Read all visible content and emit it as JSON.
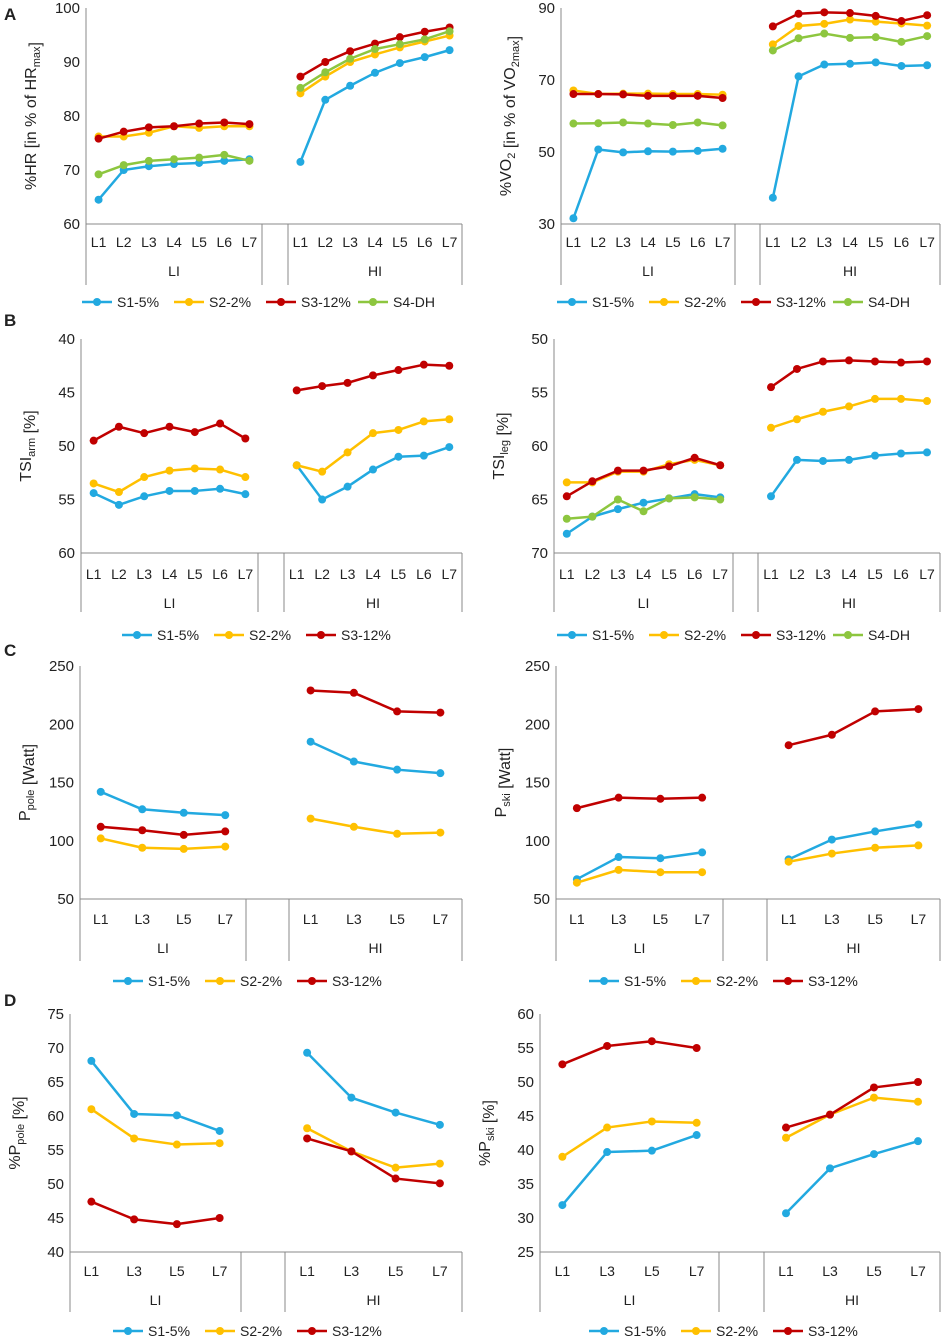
{
  "colors": {
    "S1-5%": "#22a9e0",
    "S2-2%": "#ffc000",
    "S3-12%": "#c00000",
    "S4-DH": "#8dc63f"
  },
  "rows": [
    {
      "letter": "A",
      "legend": [
        "S1-5%",
        "S2-2%",
        "S3-12%",
        "S4-DH"
      ]
    },
    {
      "letter": "B",
      "legend_left": [
        "S1-5%",
        "S2-2%",
        "S3-12%"
      ],
      "legend_right": [
        "S1-5%",
        "S2-2%",
        "S3-12%",
        "S4-DH"
      ]
    },
    {
      "letter": "C",
      "legend": [
        "S1-5%",
        "S2-2%",
        "S3-12%"
      ]
    },
    {
      "letter": "D",
      "legend": [
        "S1-5%",
        "S2-2%",
        "S3-12%"
      ]
    }
  ],
  "chart_data": [
    {
      "id": "A-left",
      "type": "line",
      "ylabel": "%HR [in % of HRmax]",
      "ylim": [
        60,
        100
      ],
      "yticks": [
        60,
        70,
        80,
        90,
        100
      ],
      "groups": [
        {
          "name": "LI",
          "categories": [
            "L1",
            "L2",
            "L3",
            "L4",
            "L5",
            "L6",
            "L7"
          ]
        },
        {
          "name": "HI",
          "categories": [
            "L1",
            "L2",
            "L3",
            "L4",
            "L5",
            "L6",
            "L7"
          ]
        }
      ],
      "series": [
        {
          "name": "S1-5%",
          "LI": [
            64.5,
            70,
            70.7,
            71.1,
            71.3,
            71.7,
            72
          ],
          "HI": [
            71.5,
            83,
            85.6,
            88,
            89.8,
            90.9,
            92.2
          ]
        },
        {
          "name": "S2-2%",
          "LI": [
            76.2,
            76.2,
            76.9,
            78.1,
            77.8,
            78.1,
            78.1
          ],
          "HI": [
            84.2,
            87.3,
            90,
            91.4,
            92.7,
            93.8,
            94.9
          ]
        },
        {
          "name": "S3-12%",
          "LI": [
            75.8,
            77.1,
            77.9,
            78.1,
            78.6,
            78.8,
            78.5
          ],
          "HI": [
            87.3,
            90,
            92,
            93.4,
            94.6,
            95.6,
            96.4
          ]
        },
        {
          "name": "S4-DH",
          "LI": [
            69.2,
            70.9,
            71.7,
            72,
            72.3,
            72.8,
            71.7
          ],
          "HI": [
            85.2,
            88.1,
            90.6,
            92.4,
            93.3,
            94.2,
            95.7
          ]
        }
      ]
    },
    {
      "id": "A-right",
      "type": "line",
      "ylabel": "%VO2 [in % of VO2max]",
      "ylim": [
        30,
        90
      ],
      "yticks": [
        30,
        50,
        70,
        90
      ],
      "groups": [
        {
          "name": "LI",
          "categories": [
            "L1",
            "L2",
            "L3",
            "L4",
            "L5",
            "L6",
            "L7"
          ]
        },
        {
          "name": "HI",
          "categories": [
            "L1",
            "L2",
            "L3",
            "L4",
            "L5",
            "L6",
            "L7"
          ]
        }
      ],
      "series": [
        {
          "name": "S1-5%",
          "LI": [
            31.6,
            50.7,
            49.9,
            50.2,
            50.1,
            50.3,
            50.9
          ],
          "HI": [
            37.3,
            71,
            74.3,
            74.5,
            74.9,
            73.9,
            74.1
          ]
        },
        {
          "name": "S2-2%",
          "LI": [
            67.1,
            66.1,
            66.2,
            66.2,
            66.1,
            66.1,
            65.9
          ],
          "HI": [
            79.9,
            85,
            85.6,
            86.8,
            86.2,
            85.7,
            85.1
          ]
        },
        {
          "name": "S3-12%",
          "LI": [
            66.1,
            66.1,
            66,
            65.6,
            65.6,
            65.6,
            65
          ],
          "HI": [
            84.9,
            88.4,
            88.8,
            88.6,
            87.8,
            86.4,
            88
          ]
        },
        {
          "name": "S4-DH",
          "LI": [
            57.9,
            58,
            58.2,
            57.9,
            57.5,
            58.2,
            57.4
          ],
          "HI": [
            78.2,
            81.6,
            82.9,
            81.7,
            81.9,
            80.6,
            82.2
          ]
        }
      ]
    },
    {
      "id": "B-left",
      "type": "line",
      "ylabel": "TSIarm [%]",
      "ylim": [
        40,
        60
      ],
      "yticks": [
        40,
        45,
        50,
        55,
        60
      ],
      "y_inverted": true,
      "groups": [
        {
          "name": "LI",
          "categories": [
            "L1",
            "L2",
            "L3",
            "L4",
            "L5",
            "L6",
            "L7"
          ]
        },
        {
          "name": "HI",
          "categories": [
            "L1",
            "L2",
            "L3",
            "L4",
            "L5",
            "L6",
            "L7"
          ]
        }
      ],
      "series": [
        {
          "name": "S1-5%",
          "LI": [
            54.4,
            55.5,
            54.7,
            54.2,
            54.2,
            54,
            54.5
          ],
          "HI": [
            51.8,
            55,
            53.8,
            52.2,
            51,
            50.9,
            50.1
          ]
        },
        {
          "name": "S2-2%",
          "LI": [
            53.5,
            54.3,
            52.9,
            52.3,
            52.1,
            52.2,
            52.9
          ],
          "HI": [
            51.8,
            52.4,
            50.6,
            48.8,
            48.5,
            47.7,
            47.5
          ]
        },
        {
          "name": "S3-12%",
          "LI": [
            49.5,
            48.2,
            48.8,
            48.2,
            48.7,
            47.9,
            49.3
          ],
          "HI": [
            44.8,
            44.4,
            44.1,
            43.4,
            42.9,
            42.4,
            42.5
          ]
        }
      ]
    },
    {
      "id": "B-right",
      "type": "line",
      "ylabel": "TSIleg [%]",
      "ylim": [
        50,
        70
      ],
      "yticks": [
        50,
        55,
        60,
        65,
        70
      ],
      "y_inverted": true,
      "groups": [
        {
          "name": "LI",
          "categories": [
            "L1",
            "L2",
            "L3",
            "L4",
            "L5",
            "L6",
            "L7"
          ]
        },
        {
          "name": "HI",
          "categories": [
            "L1",
            "L2",
            "L3",
            "L4",
            "L5",
            "L6",
            "L7"
          ]
        }
      ],
      "series": [
        {
          "name": "S1-5%",
          "LI": [
            68.2,
            66.6,
            65.9,
            65.3,
            64.9,
            64.5,
            64.8
          ],
          "HI": [
            64.7,
            61.3,
            61.4,
            61.3,
            60.9,
            60.7,
            60.6
          ]
        },
        {
          "name": "S2-2%",
          "LI": [
            63.4,
            63.4,
            62.4,
            62.4,
            61.7,
            61.3,
            61.8
          ],
          "HI": [
            58.3,
            57.5,
            56.8,
            56.3,
            55.6,
            55.6,
            55.8
          ]
        },
        {
          "name": "S3-12%",
          "LI": [
            64.7,
            63.3,
            62.3,
            62.3,
            61.9,
            61.1,
            61.8
          ],
          "HI": [
            54.5,
            52.8,
            52.1,
            52,
            52.1,
            52.2,
            52.1
          ]
        },
        {
          "name": "S4-DH",
          "LI": [
            66.8,
            66.6,
            65,
            66.1,
            64.9,
            64.8,
            65
          ]
        }
      ]
    },
    {
      "id": "C-left",
      "type": "line",
      "ylabel": "Ppole [Watt]",
      "ylim": [
        50,
        250
      ],
      "yticks": [
        50,
        100,
        150,
        200,
        250
      ],
      "groups": [
        {
          "name": "LI",
          "categories": [
            "L1",
            "L3",
            "L5",
            "L7"
          ]
        },
        {
          "name": "HI",
          "categories": [
            "L1",
            "L3",
            "L5",
            "L7"
          ]
        }
      ],
      "series": [
        {
          "name": "S1-5%",
          "LI": [
            142,
            127,
            124,
            122
          ],
          "HI": [
            185,
            168,
            161,
            158
          ]
        },
        {
          "name": "S2-2%",
          "LI": [
            102,
            94,
            93,
            95
          ],
          "HI": [
            119,
            112,
            106,
            107
          ]
        },
        {
          "name": "S3-12%",
          "LI": [
            112,
            109,
            105,
            108
          ],
          "HI": [
            229,
            227,
            211,
            210
          ]
        }
      ]
    },
    {
      "id": "C-right",
      "type": "line",
      "ylabel": "Pski [Watt]",
      "ylim": [
        50,
        250
      ],
      "yticks": [
        50,
        100,
        150,
        200,
        250
      ],
      "groups": [
        {
          "name": "LI",
          "categories": [
            "L1",
            "L3",
            "L5",
            "L7"
          ]
        },
        {
          "name": "HI",
          "categories": [
            "L1",
            "L3",
            "L5",
            "L7"
          ]
        }
      ],
      "series": [
        {
          "name": "S1-5%",
          "LI": [
            67,
            86,
            85,
            90
          ],
          "HI": [
            84,
            101,
            108,
            114
          ]
        },
        {
          "name": "S2-2%",
          "LI": [
            64,
            75,
            73,
            73
          ],
          "HI": [
            82,
            89,
            94,
            96
          ]
        },
        {
          "name": "S3-12%",
          "LI": [
            128,
            137,
            136,
            137
          ],
          "HI": [
            182,
            191,
            211,
            213
          ]
        }
      ]
    },
    {
      "id": "D-left",
      "type": "line",
      "ylabel": "%Ppole [%]",
      "ylim": [
        40,
        75
      ],
      "yticks": [
        40,
        45,
        50,
        55,
        60,
        65,
        70,
        75
      ],
      "groups": [
        {
          "name": "LI",
          "categories": [
            "L1",
            "L3",
            "L5",
            "L7"
          ]
        },
        {
          "name": "HI",
          "categories": [
            "L1",
            "L3",
            "L5",
            "L7"
          ]
        }
      ],
      "series": [
        {
          "name": "S1-5%",
          "LI": [
            68.1,
            60.3,
            60.1,
            57.8
          ],
          "HI": [
            69.3,
            62.7,
            60.5,
            58.7
          ]
        },
        {
          "name": "S2-2%",
          "LI": [
            61,
            56.7,
            55.8,
            56
          ],
          "HI": [
            58.2,
            54.8,
            52.4,
            53
          ]
        },
        {
          "name": "S3-12%",
          "LI": [
            47.4,
            44.8,
            44.1,
            45
          ],
          "HI": [
            56.7,
            54.8,
            50.8,
            50.1
          ]
        }
      ]
    },
    {
      "id": "D-right",
      "type": "line",
      "ylabel": "%Pski [%]",
      "ylim": [
        25,
        60
      ],
      "yticks": [
        25,
        30,
        35,
        40,
        45,
        50,
        55,
        60
      ],
      "groups": [
        {
          "name": "LI",
          "categories": [
            "L1",
            "L3",
            "L5",
            "L7"
          ]
        },
        {
          "name": "HI",
          "categories": [
            "L1",
            "L3",
            "L5",
            "L7"
          ]
        }
      ],
      "series": [
        {
          "name": "S1-5%",
          "LI": [
            31.9,
            39.7,
            39.9,
            42.2
          ],
          "HI": [
            30.7,
            37.3,
            39.4,
            41.3
          ]
        },
        {
          "name": "S2-2%",
          "LI": [
            39,
            43.3,
            44.2,
            44
          ],
          "HI": [
            41.8,
            45.2,
            47.7,
            47.1
          ]
        },
        {
          "name": "S3-12%",
          "LI": [
            52.6,
            55.3,
            56,
            55
          ],
          "HI": [
            43.3,
            45.2,
            49.2,
            50
          ]
        }
      ]
    }
  ]
}
